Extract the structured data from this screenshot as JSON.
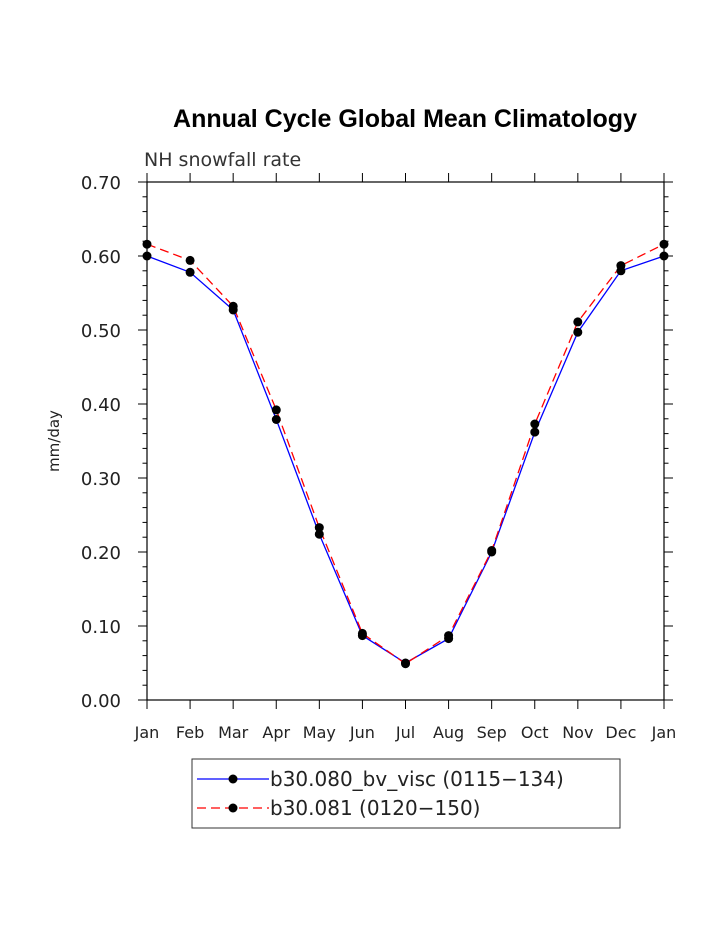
{
  "chart_data": {
    "type": "line",
    "title": "Annual Cycle Global Mean Climatology",
    "subtitle": "NH snowfall rate",
    "xlabel": "",
    "ylabel": "mm/day",
    "categories": [
      "Jan",
      "Feb",
      "Mar",
      "Apr",
      "May",
      "Jun",
      "Jul",
      "Aug",
      "Sep",
      "Oct",
      "Nov",
      "Dec",
      "Jan"
    ],
    "ylim": [
      0,
      0.7
    ],
    "yticks": [
      "0.00",
      "0.10",
      "0.20",
      "0.30",
      "0.40",
      "0.50",
      "0.60",
      "0.70"
    ],
    "series": [
      {
        "name": "b30.080_bv_visc (0115−134)",
        "color": "#0000ff",
        "dash": "solid",
        "values": [
          0.6,
          0.578,
          0.527,
          0.379,
          0.224,
          0.087,
          0.05,
          0.083,
          0.2,
          0.362,
          0.497,
          0.58,
          0.6
        ]
      },
      {
        "name": "b30.081 (0120−150)",
        "color": "#ff0000",
        "dash": "dashed",
        "values": [
          0.616,
          0.594,
          0.532,
          0.392,
          0.233,
          0.09,
          0.049,
          0.087,
          0.202,
          0.373,
          0.511,
          0.587,
          0.616
        ]
      }
    ],
    "legend_position": "bottom-center",
    "grid": false
  }
}
